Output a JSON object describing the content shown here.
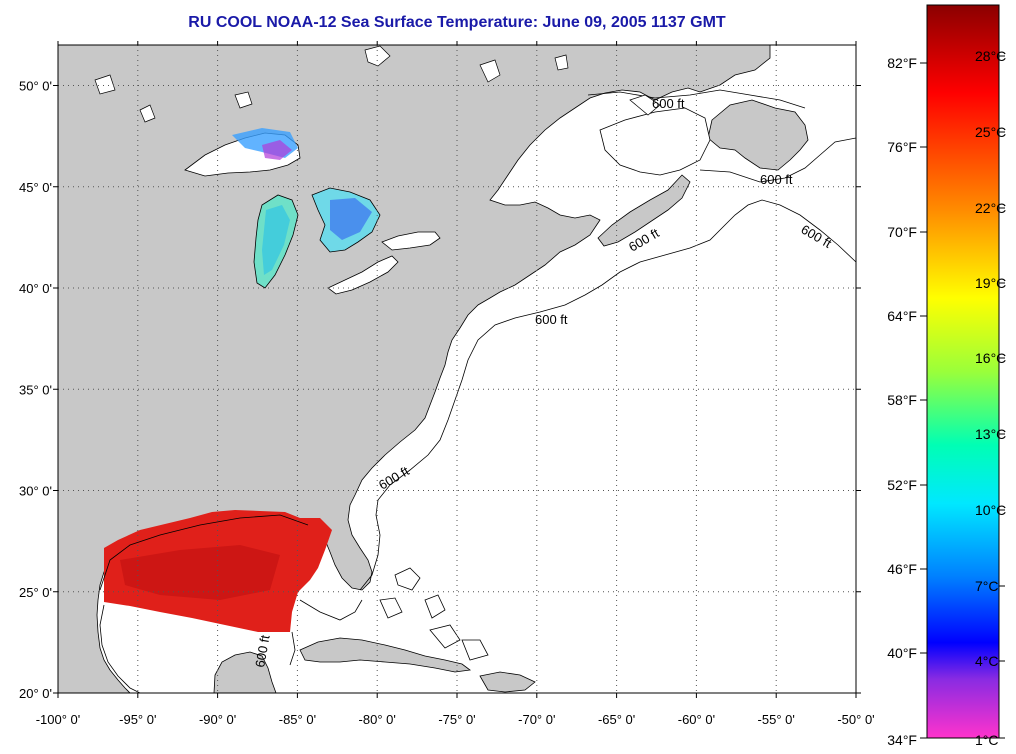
{
  "title": "RU COOL  NOAA-12  Sea Surface Temperature:  June 09, 2005 1137 GMT",
  "map": {
    "lon_range": [
      -100,
      -50
    ],
    "lat_range": [
      20,
      52
    ],
    "lon_ticks": [
      {
        "value": -100,
        "label": "-100° 0'"
      },
      {
        "value": -95,
        "label": "-95° 0'"
      },
      {
        "value": -90,
        "label": "-90° 0'"
      },
      {
        "value": -85,
        "label": "-85° 0'"
      },
      {
        "value": -80,
        "label": "-80° 0'"
      },
      {
        "value": -75,
        "label": "-75° 0'"
      },
      {
        "value": -70,
        "label": "-70° 0'"
      },
      {
        "value": -65,
        "label": "-65° 0'"
      },
      {
        "value": -60,
        "label": "-60° 0'"
      },
      {
        "value": -55,
        "label": "-55° 0'"
      },
      {
        "value": -50,
        "label": "-50° 0'"
      }
    ],
    "lat_ticks": [
      {
        "value": 20,
        "label": "20° 0'"
      },
      {
        "value": 25,
        "label": "25° 0'"
      },
      {
        "value": 30,
        "label": "30° 0'"
      },
      {
        "value": 35,
        "label": "35° 0'"
      },
      {
        "value": 40,
        "label": "40° 0'"
      },
      {
        "value": 45,
        "label": "45° 0'"
      },
      {
        "value": 50,
        "label": "50° 0'"
      }
    ],
    "isobath_label": "600 ft",
    "land_color": "#c8c8c8",
    "water_color": "#ffffff"
  },
  "colorbar": {
    "fahrenheit_labels": [
      "82°F",
      "76°F",
      "70°F",
      "64°F",
      "58°F",
      "52°F",
      "46°F",
      "40°F",
      "34°F"
    ],
    "celsius_labels": [
      "28°C",
      "25°C",
      "22°C",
      "19°C",
      "16°C",
      "13°C",
      "10°C",
      "7°C",
      "4°C",
      "1°C"
    ],
    "gradient_stops": [
      {
        "offset": 0,
        "color": "#8b0000"
      },
      {
        "offset": 0.12,
        "color": "#ff0000"
      },
      {
        "offset": 0.28,
        "color": "#ff8c00"
      },
      {
        "offset": 0.4,
        "color": "#ffff00"
      },
      {
        "offset": 0.5,
        "color": "#9aff3a"
      },
      {
        "offset": 0.6,
        "color": "#00ffb4"
      },
      {
        "offset": 0.68,
        "color": "#00e8ff"
      },
      {
        "offset": 0.78,
        "color": "#0080ff"
      },
      {
        "offset": 0.87,
        "color": "#0000ff"
      },
      {
        "offset": 0.92,
        "color": "#8a2be2"
      },
      {
        "offset": 1,
        "color": "#ff33cc"
      }
    ]
  }
}
